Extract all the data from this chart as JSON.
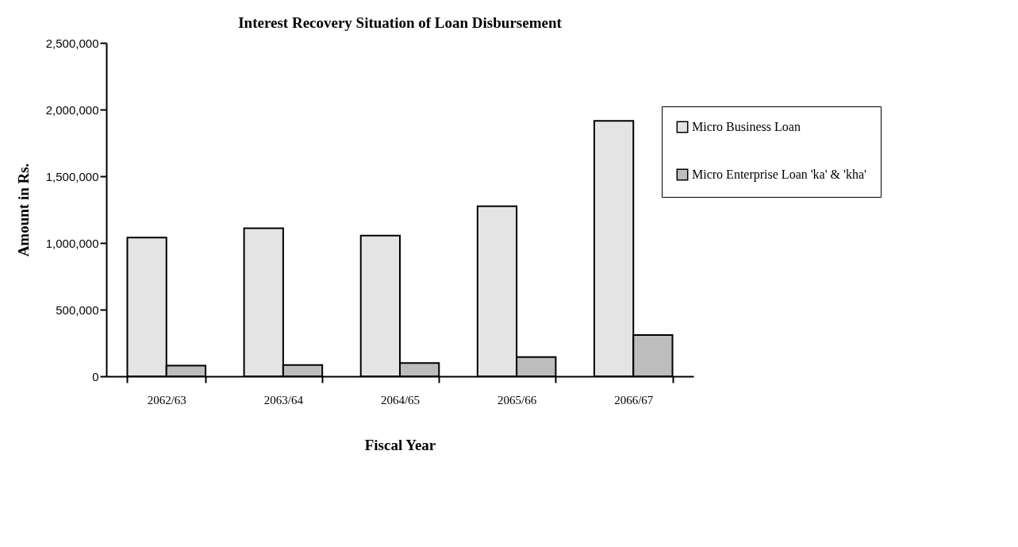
{
  "chart_data": {
    "type": "bar",
    "title": "Interest Recovery Situation of Loan Disbursement",
    "xlabel": "Fiscal Year",
    "ylabel": "Amount in Rs.",
    "categories": [
      "2062/63",
      "2063/64",
      "2064/65",
      "2065/66",
      "2066/67"
    ],
    "series": [
      {
        "name": "Micro Business Loan",
        "color": "#e4e4e4",
        "values": [
          1040000,
          1110000,
          1055000,
          1275000,
          1915000
        ]
      },
      {
        "name": "Micro Enterprise Loan 'ka' & 'kha'",
        "color": "#bdbdbd",
        "values": [
          80000,
          85000,
          100000,
          145000,
          310000
        ]
      }
    ],
    "ylim": [
      0,
      2500000
    ],
    "yticks": [
      0,
      {
        "value": 500000,
        "label": "500,000"
      },
      {
        "value": 1000000,
        "label": "1,000,000"
      },
      {
        "value": 1500000,
        "label": "1,500,000"
      },
      {
        "value": 2000000,
        "label": "2,000,000"
      },
      {
        "value": 2500000,
        "label": "2,500,000"
      }
    ],
    "grid": false,
    "legend": "right"
  }
}
